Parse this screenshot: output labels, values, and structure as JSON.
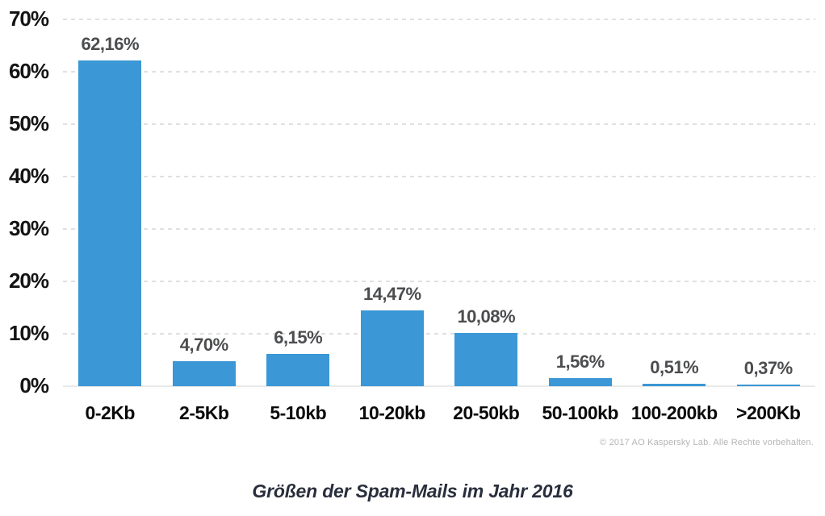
{
  "chart_data": {
    "type": "bar",
    "title": "Größen der Spam-Mails im Jahr 2016",
    "categories": [
      "0-2Kb",
      "2-5Kb",
      "5-10kb",
      "10-20kb",
      "20-50kb",
      "50-100kb",
      "100-200kb",
      ">200Kb"
    ],
    "values": [
      62.16,
      4.7,
      6.15,
      14.47,
      10.08,
      1.56,
      0.51,
      0.37
    ],
    "value_labels": [
      "62,16%",
      "4,70%",
      "6,15%",
      "14,47%",
      "10,08%",
      "1,56%",
      "0,51%",
      "0,37%"
    ],
    "y_ticks": [
      "70%",
      "60%",
      "50%",
      "40%",
      "30%",
      "20%",
      "10%",
      "0%"
    ],
    "ylim": [
      0,
      70
    ],
    "y_tick_step": 10,
    "grid": "horizontal-dashed",
    "legend": "none",
    "bar_color": "#3b97d5",
    "value_label_color": "#4c4d4f",
    "axis_label_color": "#141414"
  },
  "footer": {
    "copyright": "© 2017 AO Kaspersky Lab. Alle Rechte vorbehalten."
  },
  "caption": {
    "title": "Größen der Spam-Mails im Jahr 2016"
  }
}
